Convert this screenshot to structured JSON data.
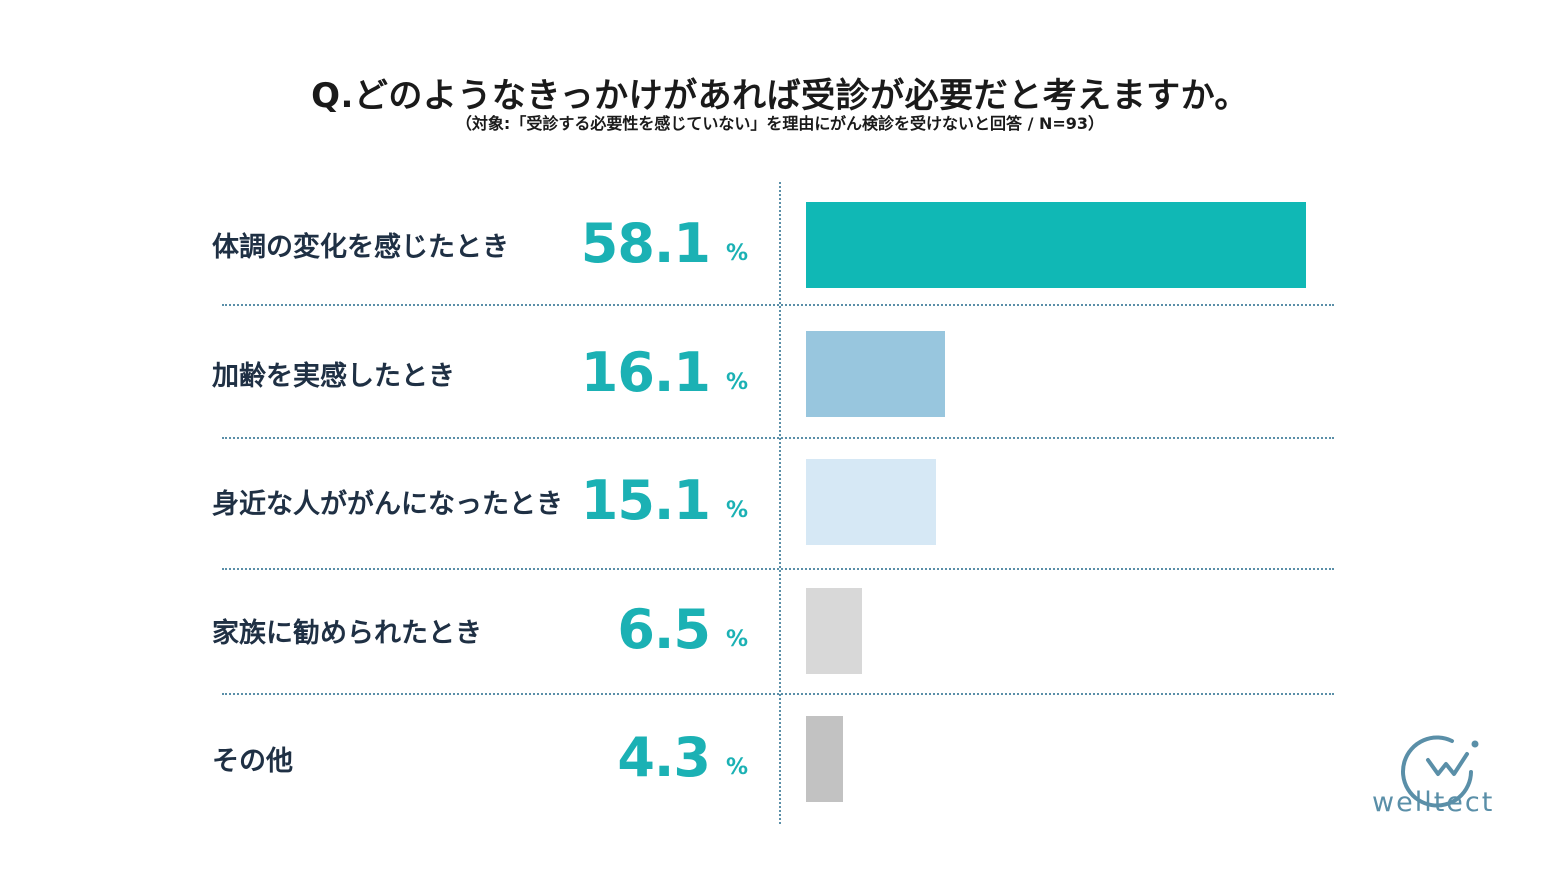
{
  "chart_data": {
    "type": "bar",
    "title": "Q.どのようなきっかけがあれば受診が必要だと考えますか。",
    "subtitle": "（対象:「受診する必要性を感じていない」を理由にがん検診を受けないと回答 / N=93）",
    "unit": "%",
    "categories": [
      "体調の変化を感じたとき",
      "加齢を実感したとき",
      "身近な人ががんになったとき",
      "家族に勧められたとき",
      "その他"
    ],
    "values": [
      58.1,
      16.1,
      15.1,
      6.5,
      4.3
    ],
    "value_labels": [
      "58.1",
      "16.1",
      "15.1",
      "6.5",
      "4.3"
    ],
    "colors": [
      "#10b8b5",
      "#98c6de",
      "#d6e8f5",
      "#d8d8d8",
      "#c2c2c2"
    ],
    "xlim": [
      0,
      58.1
    ],
    "grid": false,
    "orientation": "horizontal"
  },
  "logo": {
    "text": "welltect",
    "icon": "welltect-logo-icon",
    "color": "#5a8fa8"
  }
}
